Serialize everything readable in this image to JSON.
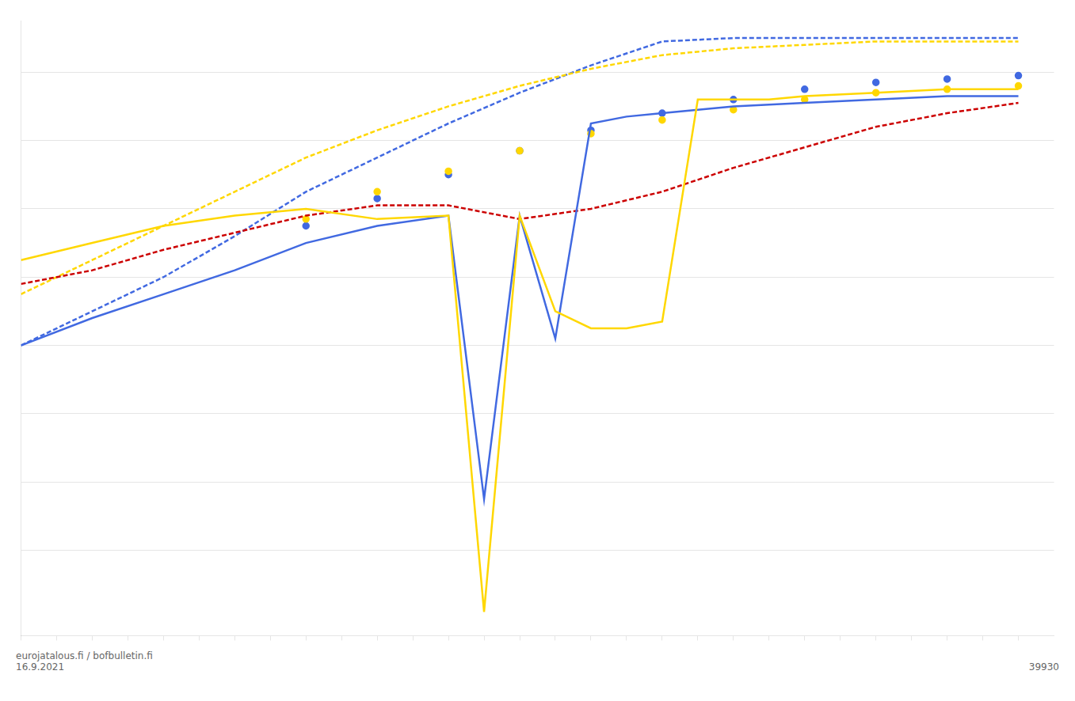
{
  "chart_data": {
    "type": "line",
    "annotations": [
      "eurojatalous.fi  /  bofbulletin.fi\n16.9.2021",
      "39930"
    ],
    "xlim": [
      0,
      29
    ],
    "xticks": [
      0,
      1,
      2,
      3,
      4,
      5,
      6,
      7,
      8,
      9,
      10,
      11,
      12,
      13,
      14,
      15,
      16,
      17,
      18,
      19,
      20,
      21,
      22,
      23,
      24,
      25,
      26,
      27,
      28
    ],
    "ylim": [
      -12.5,
      5.5
    ],
    "yticks": [
      -10,
      -8,
      -6,
      -4,
      -2,
      0,
      2,
      4
    ],
    "grid": true,
    "tick_labels": false,
    "series": [
      {
        "type": "line",
        "color": "#4169E1",
        "line_style": "dashed",
        "x": [
          0,
          2,
          4,
          6,
          8,
          10,
          12,
          14,
          16,
          18,
          20,
          22,
          24,
          26,
          28
        ],
        "values": [
          -4.0,
          -3.0,
          -2.0,
          -0.8,
          0.5,
          1.5,
          2.5,
          3.4,
          4.2,
          4.9,
          5.0,
          5.0,
          5.0,
          5.0,
          5.0
        ]
      },
      {
        "type": "line",
        "color": "#FFD700",
        "line_style": "dashed",
        "x": [
          0,
          2,
          4,
          6,
          8,
          10,
          12,
          14,
          16,
          18,
          20,
          22,
          24,
          26,
          28
        ],
        "values": [
          -2.5,
          -1.5,
          -0.5,
          0.5,
          1.5,
          2.3,
          3.0,
          3.6,
          4.1,
          4.5,
          4.7,
          4.8,
          4.9,
          4.9,
          4.9
        ]
      },
      {
        "type": "scatter",
        "color": "#4169E1",
        "marker": "circle",
        "x": [
          8,
          10,
          12,
          14,
          16,
          18,
          20,
          22,
          24,
          26,
          28
        ],
        "values": [
          -0.5,
          0.3,
          1.0,
          1.7,
          2.3,
          2.8,
          3.2,
          3.5,
          3.7,
          3.8,
          3.9
        ]
      },
      {
        "type": "scatter",
        "color": "#FFD700",
        "marker": "circle",
        "x": [
          8,
          10,
          12,
          14,
          16,
          18,
          20,
          22,
          24,
          26,
          28
        ],
        "values": [
          -0.3,
          0.5,
          1.1,
          1.7,
          2.2,
          2.6,
          2.9,
          3.2,
          3.4,
          3.5,
          3.6
        ]
      },
      {
        "type": "line",
        "color": "#CC0000",
        "line_style": "dashed",
        "x": [
          0,
          2,
          4,
          6,
          8,
          10,
          12,
          14,
          16,
          18,
          20,
          22,
          24,
          26,
          28
        ],
        "values": [
          -2.2,
          -1.8,
          -1.2,
          -0.7,
          -0.2,
          0.1,
          0.1,
          -0.3,
          0.0,
          0.5,
          1.2,
          1.8,
          2.4,
          2.8,
          3.1
        ]
      },
      {
        "type": "line",
        "color": "#4169E1",
        "line_style": "solid",
        "x": [
          0,
          2,
          4,
          6,
          8,
          10,
          12,
          13,
          14,
          15,
          16,
          17,
          18,
          20,
          22,
          24,
          26,
          28
        ],
        "values": [
          -4.0,
          -3.2,
          -2.5,
          -1.8,
          -1.0,
          -0.5,
          -0.2,
          -8.5,
          -0.2,
          -3.8,
          2.5,
          2.7,
          2.8,
          3.0,
          3.1,
          3.2,
          3.3,
          3.3
        ]
      },
      {
        "type": "line",
        "color": "#FFD700",
        "line_style": "solid",
        "x": [
          0,
          2,
          4,
          6,
          8,
          10,
          12,
          13,
          14,
          15,
          16,
          17,
          18,
          19,
          20,
          21,
          22,
          24,
          26,
          28
        ],
        "values": [
          -1.5,
          -1.0,
          -0.5,
          -0.2,
          0.0,
          -0.3,
          -0.2,
          -11.8,
          -0.2,
          -3.0,
          -3.5,
          -3.5,
          -3.3,
          3.2,
          3.2,
          3.2,
          3.3,
          3.4,
          3.5,
          3.5
        ]
      }
    ]
  }
}
